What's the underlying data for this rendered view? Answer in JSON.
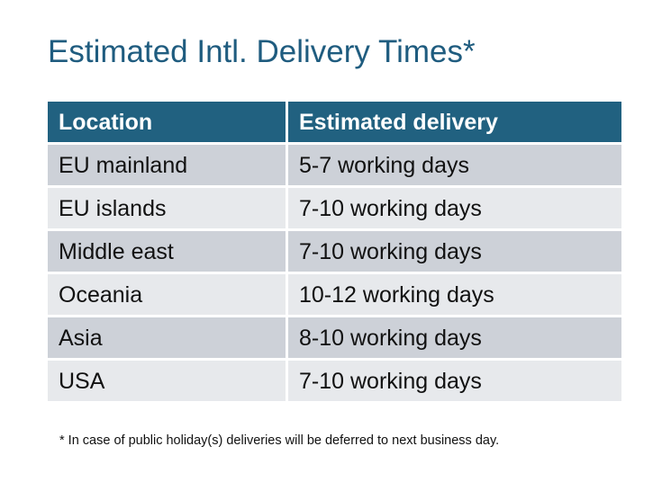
{
  "title": "Estimated Intl. Delivery Times*",
  "table": {
    "headers": [
      "Location",
      "Estimated delivery"
    ],
    "rows": [
      [
        "EU mainland",
        "5-7 working days"
      ],
      [
        "EU islands",
        "7-10 working days"
      ],
      [
        "Middle east",
        "7-10 working days"
      ],
      [
        "Oceania",
        "10-12 working days"
      ],
      [
        "Asia",
        "8-10 working days"
      ],
      [
        "USA",
        "7-10 working days"
      ]
    ]
  },
  "footnote": "* In case of public holiday(s) deliveries will be deferred to next business day.",
  "colors": {
    "header": "#216180",
    "title": "#1f5c7f",
    "row_dark": "#cdd1d8",
    "row_light": "#e7e9ec"
  }
}
